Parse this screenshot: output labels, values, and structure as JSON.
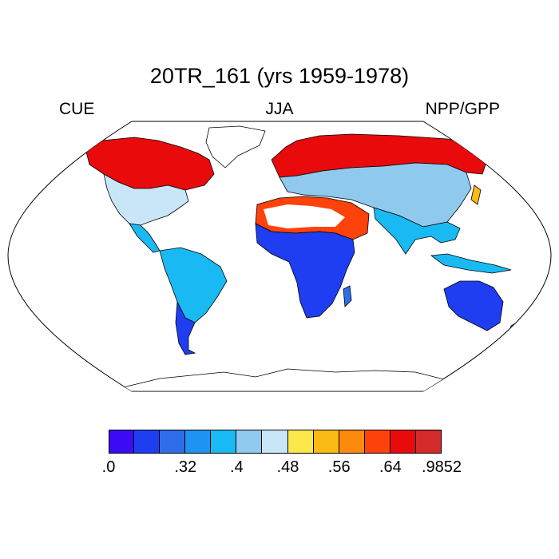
{
  "title": "20TR_161 (yrs 1959-1978)",
  "left_label": "CUE",
  "center_label": "JJA",
  "right_label": "NPP/GPP",
  "projection": "robinson",
  "colorbar": {
    "colors": [
      "#3b0cf4",
      "#1f3ef2",
      "#2f6ee9",
      "#1f93f3",
      "#19baf3",
      "#8fcaee",
      "#c9e6f8",
      "#fde84b",
      "#fcbb14",
      "#fc8a0c",
      "#fe420b",
      "#e90a0c",
      "#d42a2a"
    ],
    "labels": [
      ".0",
      ".32",
      ".4",
      ".48",
      ".56",
      ".64",
      ".9852"
    ],
    "label_boundaries": [
      0,
      3,
      5,
      7,
      9,
      11,
      13
    ]
  },
  "regions": [
    {
      "name": "north-america-north",
      "value_class": 11
    },
    {
      "name": "north-america-central",
      "value_class": 6
    },
    {
      "name": "central-america",
      "value_class": 4
    },
    {
      "name": "south-america",
      "value_class": 4
    },
    {
      "name": "patagonia",
      "value_class": 1
    },
    {
      "name": "europe-siberia",
      "value_class": 11
    },
    {
      "name": "central-asia",
      "value_class": 5
    },
    {
      "name": "sahara-arabia",
      "value_class": 10
    },
    {
      "name": "africa",
      "value_class": 1
    },
    {
      "name": "south-asia",
      "value_class": 4
    },
    {
      "name": "australia",
      "value_class": 1
    },
    {
      "name": "new-zealand",
      "value_class": 1
    }
  ]
}
